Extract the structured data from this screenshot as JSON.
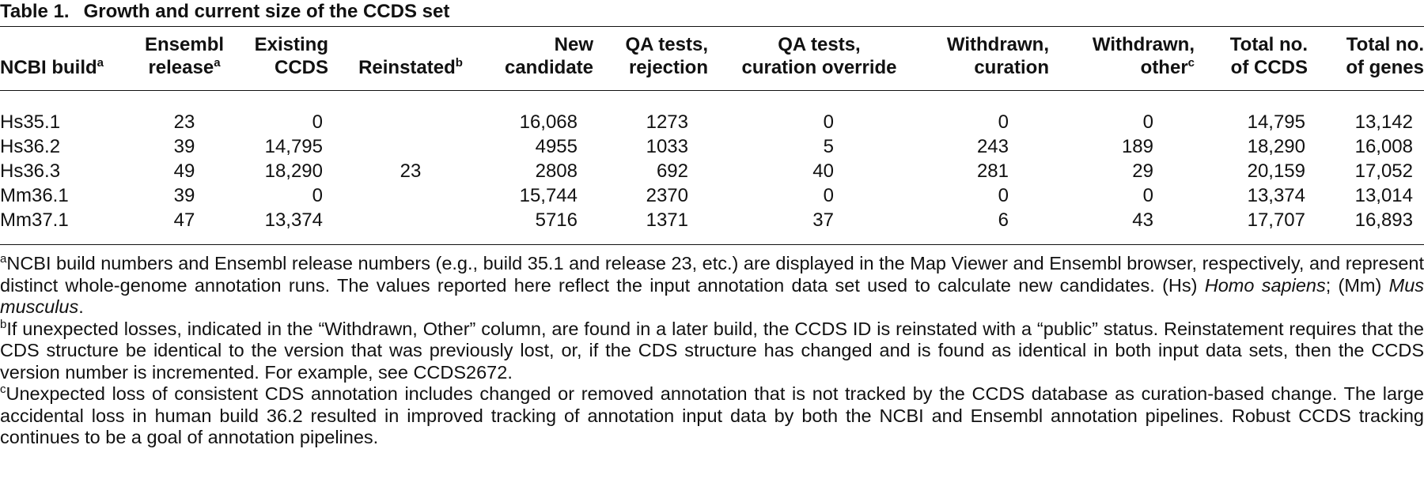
{
  "title": {
    "label": "Table 1.",
    "text": "Growth and current size of the CCDS set"
  },
  "table": {
    "header": [
      {
        "lines": [
          "NCBI build"
        ],
        "sup": "a"
      },
      {
        "lines": [
          "Ensembl",
          "release"
        ],
        "sup": "a"
      },
      {
        "lines": [
          "Existing",
          "CCDS"
        ]
      },
      {
        "lines": [
          "Reinstated"
        ],
        "sup": "b"
      },
      {
        "lines": [
          "New",
          "candidate"
        ]
      },
      {
        "lines": [
          "QA tests,",
          "rejection"
        ]
      },
      {
        "lines": [
          "QA tests,",
          "curation override"
        ]
      },
      {
        "lines": [
          "Withdrawn,",
          "curation"
        ]
      },
      {
        "lines": [
          "Withdrawn,",
          "other"
        ],
        "sup": "c"
      },
      {
        "lines": [
          "Total no.",
          "of CCDS"
        ]
      },
      {
        "lines": [
          "Total no.",
          "of genes"
        ]
      }
    ],
    "rows": [
      [
        "Hs35.1",
        "23",
        "0",
        null,
        "16,068",
        "1273",
        "0",
        "0",
        "0",
        "14,795",
        "13,142"
      ],
      [
        "Hs36.2",
        "39",
        "14,795",
        null,
        "4955",
        "1033",
        "5",
        "243",
        "189",
        "18,290",
        "16,008"
      ],
      [
        "Hs36.3",
        "49",
        "18,290",
        "23",
        "2808",
        "692",
        "40",
        "281",
        "29",
        "20,159",
        "17,052"
      ],
      [
        "Mm36.1",
        "39",
        "0",
        null,
        "15,744",
        "2370",
        "0",
        "0",
        "0",
        "13,374",
        "13,014"
      ],
      [
        "Mm37.1",
        "47",
        "13,374",
        null,
        "5716",
        "1371",
        "37",
        "6",
        "43",
        "17,707",
        "16,893"
      ]
    ]
  },
  "footnotes": [
    {
      "mark": "a",
      "parts": [
        {
          "text": "NCBI build numbers and Ensembl release numbers (e.g., build 35.1 and release 23, etc.) are displayed in the Map Viewer and Ensembl browser, respectively, and represent distinct whole-genome annotation runs. The values reported here reflect the input annotation data set used to calculate new candidates. (Hs) "
        },
        {
          "text": "Homo sapiens",
          "italic": true
        },
        {
          "text": "; (Mm) "
        },
        {
          "text": "Mus musculus",
          "italic": true
        },
        {
          "text": "."
        }
      ]
    },
    {
      "mark": "b",
      "parts": [
        {
          "text": "If unexpected losses, indicated in the “Withdrawn, Other” column, are found in a later build, the CCDS ID is reinstated with a “public” status. Reinstatement requires that the CDS structure be identical to the version that was previously lost, or, if the CDS structure has changed and is found as identical in both input data sets, then the CCDS version number is incremented. For example, see CCDS2672."
        }
      ]
    },
    {
      "mark": "c",
      "parts": [
        {
          "text": "Unexpected loss of consistent CDS annotation includes changed or removed annotation that is not tracked by the CCDS database as curation-based change. The large accidental loss in human build 36.2 resulted in improved tracking of annotation input data by both the NCBI and Ensembl annotation pipelines. Robust CCDS tracking continues to be a goal of annotation pipelines."
        }
      ]
    }
  ]
}
